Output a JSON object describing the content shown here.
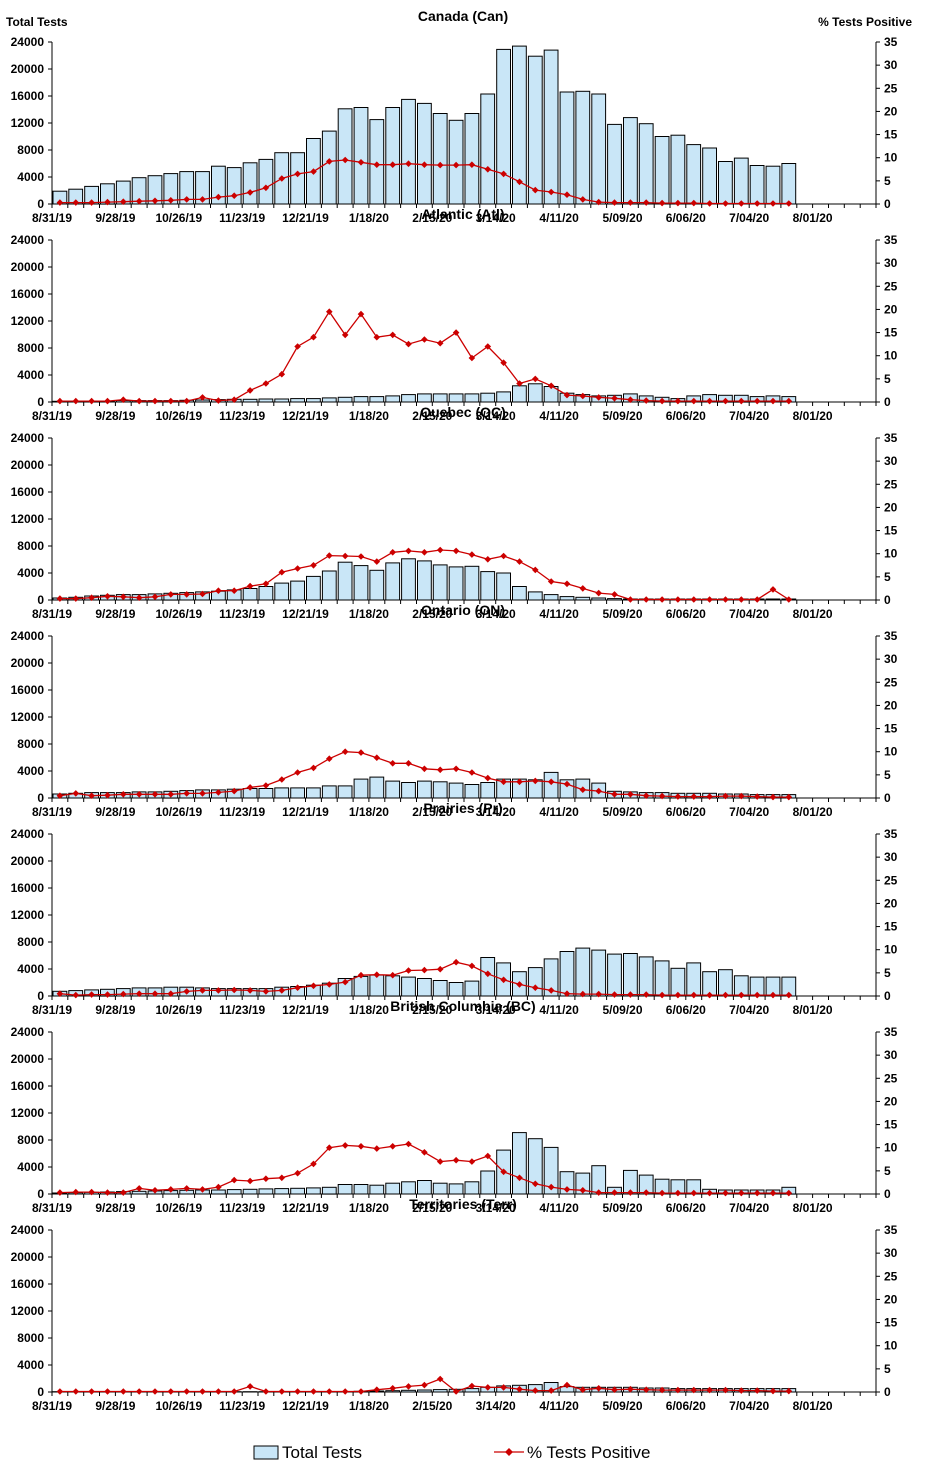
{
  "axis_labels": {
    "left": "Total Tests",
    "right": "% Tests Positive"
  },
  "legend": {
    "bars": "Total Tests",
    "line": "% Tests Positive"
  },
  "colors": {
    "bar_fill": "#c9e6f7",
    "bar_stroke": "#000000",
    "line": "#cc0000"
  },
  "chart_data": [
    {
      "type": "bar",
      "title": "Canada (Can)",
      "xlabels": [
        "8/31/19",
        "9/28/19",
        "10/26/19",
        "11/23/19",
        "12/21/19",
        "1/18/20",
        "2/15/20",
        "3/14/20",
        "4/11/20",
        "5/09/20",
        "6/06/20",
        "7/04/20",
        "8/01/20"
      ],
      "ylim": [
        0,
        24000
      ],
      "y2lim": [
        0,
        35
      ],
      "yticks": [
        0,
        4000,
        8000,
        12000,
        16000,
        20000,
        24000
      ],
      "y2ticks": [
        0,
        5,
        10,
        15,
        20,
        25,
        30,
        35
      ],
      "series": [
        {
          "name": "Total Tests",
          "values": [
            1900,
            2200,
            2600,
            3000,
            3400,
            3900,
            4200,
            4500,
            4800,
            4800,
            5600,
            5400,
            6100,
            6600,
            7600,
            7600,
            9700,
            10800,
            14100,
            14300,
            12500,
            14300,
            15500,
            14900,
            13400,
            12400,
            13400,
            16300,
            22900,
            23400,
            21900,
            22800,
            16600,
            16700,
            16300,
            11800,
            12800,
            11900,
            10000,
            10200,
            8800,
            8300,
            6300,
            6800,
            5700,
            5600,
            6000
          ]
        },
        {
          "name": "% Tests Positive",
          "values": [
            0.3,
            0.3,
            0.3,
            0.4,
            0.5,
            0.6,
            0.7,
            0.8,
            1.0,
            1.0,
            1.5,
            1.8,
            2.5,
            3.5,
            5.5,
            6.5,
            7.0,
            9.2,
            9.5,
            9.0,
            8.5,
            8.5,
            8.7,
            8.5,
            8.4,
            8.4,
            8.5,
            7.5,
            6.5,
            4.8,
            3.0,
            2.6,
            2.0,
            1.0,
            0.4,
            0.3,
            0.3,
            0.3,
            0.2,
            0.2,
            0.2,
            0.1,
            0.1,
            0.1,
            0.1,
            0.1,
            0.1
          ]
        }
      ]
    },
    {
      "type": "bar",
      "title": "Atlantic (Atl)",
      "xlabels": [
        "8/31/19",
        "9/28/19",
        "10/26/19",
        "11/23/19",
        "12/21/19",
        "1/18/20",
        "2/15/20",
        "3/14/20",
        "4/11/20",
        "5/09/20",
        "6/06/20",
        "7/04/20",
        "8/01/20"
      ],
      "ylim": [
        0,
        24000
      ],
      "y2lim": [
        0,
        35
      ],
      "yticks": [
        0,
        4000,
        8000,
        12000,
        16000,
        20000,
        24000
      ],
      "y2ticks": [
        0,
        5,
        10,
        15,
        20,
        25,
        30,
        35
      ],
      "series": [
        {
          "name": "Total Tests",
          "values": [
            100,
            150,
            150,
            150,
            200,
            200,
            200,
            200,
            250,
            300,
            350,
            400,
            400,
            450,
            450,
            500,
            500,
            600,
            700,
            800,
            800,
            900,
            1100,
            1200,
            1200,
            1200,
            1200,
            1300,
            1500,
            2400,
            2700,
            2300,
            1300,
            1100,
            900,
            1000,
            1200,
            900,
            700,
            500,
            900,
            1100,
            1000,
            1000,
            800,
            900,
            800
          ]
        },
        {
          "name": "% Tests Positive",
          "values": [
            0.2,
            0.2,
            0.2,
            0.2,
            0.5,
            0.2,
            0.2,
            0.2,
            0.2,
            1.0,
            0.3,
            0.5,
            2.5,
            4.0,
            6.0,
            12.0,
            14.0,
            19.5,
            14.5,
            19.0,
            14.0,
            14.5,
            12.5,
            13.5,
            12.7,
            15.0,
            9.5,
            12.0,
            8.5,
            4.0,
            5.0,
            3.5,
            1.5,
            1.3,
            1.0,
            0.8,
            0.5,
            0.3,
            0.2,
            0.2,
            0.2,
            0.2,
            0.2,
            0.2,
            0.2,
            0.2,
            0.2
          ]
        }
      ]
    },
    {
      "type": "bar",
      "title": "Quebec (QC)",
      "xlabels": [
        "8/31/19",
        "9/28/19",
        "10/26/19",
        "11/23/19",
        "12/21/19",
        "1/18/20",
        "2/15/20",
        "3/14/20",
        "4/11/20",
        "5/09/20",
        "6/06/20",
        "7/04/20",
        "8/01/20"
      ],
      "ylim": [
        0,
        24000
      ],
      "y2lim": [
        0,
        35
      ],
      "yticks": [
        0,
        4000,
        8000,
        12000,
        16000,
        20000,
        24000
      ],
      "y2ticks": [
        0,
        5,
        10,
        15,
        20,
        25,
        30,
        35
      ],
      "series": [
        {
          "name": "Total Tests",
          "values": [
            300,
            400,
            600,
            700,
            800,
            800,
            900,
            1000,
            1100,
            1200,
            1300,
            1500,
            1700,
            2000,
            2500,
            2800,
            3500,
            4300,
            5600,
            5100,
            4400,
            5500,
            6100,
            5800,
            5200,
            4900,
            5000,
            4200,
            4000,
            2000,
            1200,
            800,
            500,
            400,
            300,
            200,
            150,
            150,
            150,
            150,
            150,
            150,
            150,
            150,
            150,
            150,
            150
          ]
        },
        {
          "name": "% Tests Positive",
          "values": [
            0.3,
            0.3,
            0.5,
            0.8,
            0.7,
            0.5,
            0.7,
            1.2,
            1.2,
            1.3,
            2.0,
            2.0,
            3.0,
            3.5,
            6.0,
            6.8,
            7.5,
            9.6,
            9.5,
            9.4,
            8.3,
            10.3,
            10.6,
            10.3,
            10.8,
            10.6,
            9.8,
            8.8,
            9.5,
            8.3,
            6.5,
            4.0,
            3.5,
            2.5,
            1.5,
            1.2,
            0.1,
            0.1,
            0.1,
            0.1,
            0.1,
            0.1,
            0.1,
            0.1,
            0.1,
            2.3,
            0.1
          ]
        }
      ]
    },
    {
      "type": "bar",
      "title": "Ontario (ON)",
      "xlabels": [
        "8/31/19",
        "9/28/19",
        "10/26/19",
        "11/23/19",
        "12/21/19",
        "1/18/20",
        "2/15/20",
        "3/14/20",
        "4/11/20",
        "5/09/20",
        "6/06/20",
        "7/04/20",
        "8/01/20"
      ],
      "ylim": [
        0,
        24000
      ],
      "y2lim": [
        0,
        35
      ],
      "yticks": [
        0,
        4000,
        8000,
        12000,
        16000,
        20000,
        24000
      ],
      "y2ticks": [
        0,
        5,
        10,
        15,
        20,
        25,
        30,
        35
      ],
      "series": [
        {
          "name": "Total Tests",
          "values": [
            600,
            700,
            800,
            800,
            800,
            900,
            900,
            1000,
            1100,
            1200,
            1200,
            1300,
            1400,
            1400,
            1500,
            1500,
            1500,
            1800,
            1800,
            2800,
            3100,
            2500,
            2300,
            2500,
            2400,
            2200,
            2000,
            2300,
            2800,
            2800,
            2700,
            3800,
            2700,
            2800,
            2200,
            1000,
            900,
            800,
            800,
            700,
            700,
            700,
            600,
            600,
            500,
            500,
            500
          ]
        },
        {
          "name": "% Tests Positive",
          "values": [
            0.5,
            1.0,
            0.5,
            0.6,
            0.8,
            0.8,
            0.8,
            0.8,
            1.0,
            1.0,
            1.2,
            1.5,
            2.3,
            2.7,
            4.0,
            5.5,
            6.5,
            8.5,
            10.0,
            9.8,
            8.7,
            7.5,
            7.5,
            6.3,
            6.1,
            6.3,
            5.5,
            4.3,
            3.5,
            3.5,
            3.7,
            3.5,
            3.0,
            1.8,
            1.5,
            0.8,
            0.8,
            0.5,
            0.4,
            0.3,
            0.3,
            0.3,
            0.4,
            0.4,
            0.3,
            0.2,
            0.2
          ]
        }
      ]
    },
    {
      "type": "bar",
      "title": "Prairies (Pr)",
      "xlabels": [
        "8/31/19",
        "9/28/19",
        "10/26/19",
        "11/23/19",
        "12/21/19",
        "1/18/20",
        "2/15/20",
        "3/14/20",
        "4/11/20",
        "5/09/20",
        "6/06/20",
        "7/04/20",
        "8/01/20"
      ],
      "ylim": [
        0,
        24000
      ],
      "y2lim": [
        0,
        35
      ],
      "yticks": [
        0,
        4000,
        8000,
        12000,
        16000,
        20000,
        24000
      ],
      "y2ticks": [
        0,
        5,
        10,
        15,
        20,
        25,
        30,
        35
      ],
      "series": [
        {
          "name": "Total Tests",
          "values": [
            700,
            800,
            900,
            1000,
            1100,
            1200,
            1200,
            1300,
            1300,
            1200,
            1100,
            1100,
            1100,
            1100,
            1300,
            1400,
            1600,
            1900,
            2600,
            2900,
            3100,
            3000,
            2800,
            2600,
            2300,
            2000,
            2200,
            5700,
            4900,
            3600,
            4200,
            5500,
            6600,
            7100,
            6800,
            6200,
            6300,
            5800,
            5200,
            4100,
            4900,
            3600,
            3900,
            3000,
            2800,
            2800,
            2800
          ]
        },
        {
          "name": "% Tests Positive",
          "values": [
            0.5,
            0.2,
            0.3,
            0.3,
            0.4,
            0.5,
            0.5,
            0.5,
            1.0,
            1.2,
            1.2,
            1.3,
            1.2,
            1.0,
            1.2,
            1.8,
            2.2,
            2.5,
            3.0,
            4.5,
            4.6,
            4.5,
            5.5,
            5.6,
            5.8,
            7.3,
            6.5,
            4.8,
            3.5,
            2.5,
            1.8,
            1.2,
            0.5,
            0.4,
            0.4,
            0.3,
            0.3,
            0.3,
            0.2,
            0.2,
            0.2,
            0.2,
            0.2,
            0.2,
            0.2,
            0.2,
            0.2
          ]
        }
      ]
    },
    {
      "type": "bar",
      "title": "British Columbia (BC)",
      "xlabels": [
        "8/31/19",
        "9/28/19",
        "10/26/19",
        "11/23/19",
        "12/21/19",
        "1/18/20",
        "2/15/20",
        "3/14/20",
        "4/11/20",
        "5/09/20",
        "6/06/20",
        "7/04/20",
        "8/01/20"
      ],
      "ylim": [
        0,
        24000
      ],
      "y2lim": [
        0,
        35
      ],
      "yticks": [
        0,
        4000,
        8000,
        12000,
        16000,
        20000,
        24000
      ],
      "y2ticks": [
        0,
        5,
        10,
        15,
        20,
        25,
        30,
        35
      ],
      "series": [
        {
          "name": "Total Tests",
          "values": [
            150,
            200,
            250,
            300,
            350,
            400,
            450,
            500,
            550,
            600,
            600,
            650,
            700,
            750,
            800,
            850,
            900,
            1000,
            1400,
            1400,
            1300,
            1600,
            1800,
            2000,
            1600,
            1500,
            1800,
            3400,
            6500,
            9100,
            8200,
            6900,
            3300,
            3100,
            4200,
            1000,
            3500,
            2800,
            2200,
            2100,
            2100,
            700,
            600,
            600,
            600,
            600,
            1000
          ]
        },
        {
          "name": "% Tests Positive",
          "values": [
            0.3,
            0.4,
            0.4,
            0.3,
            0.3,
            1.2,
            0.8,
            1.0,
            1.2,
            1.0,
            1.5,
            3.0,
            2.8,
            3.3,
            3.5,
            4.5,
            6.5,
            10.0,
            10.5,
            10.3,
            9.8,
            10.3,
            10.8,
            9.0,
            7.0,
            7.3,
            7.0,
            8.2,
            4.8,
            3.5,
            2.2,
            1.5,
            1.0,
            0.8,
            0.3,
            0.3,
            0.3,
            0.3,
            0.2,
            0.2,
            0.2,
            0.2,
            0.2,
            0.2,
            0.2,
            0.2,
            0.2
          ]
        }
      ]
    },
    {
      "type": "bar",
      "title": "Territories (Terr)",
      "xlabels": [
        "8/31/19",
        "9/28/19",
        "10/26/19",
        "11/23/19",
        "12/21/19",
        "1/18/20",
        "2/15/20",
        "3/14/20",
        "4/11/20",
        "5/09/20",
        "6/06/20",
        "7/04/20",
        "8/01/20"
      ],
      "ylim": [
        0,
        24000
      ],
      "y2lim": [
        0,
        35
      ],
      "yticks": [
        0,
        4000,
        8000,
        12000,
        16000,
        20000,
        24000
      ],
      "y2ticks": [
        0,
        5,
        10,
        15,
        20,
        25,
        30,
        35
      ],
      "series": [
        {
          "name": "Total Tests",
          "values": [
            50,
            50,
            50,
            50,
            50,
            50,
            50,
            50,
            50,
            50,
            50,
            50,
            50,
            50,
            50,
            50,
            50,
            50,
            50,
            100,
            150,
            200,
            250,
            300,
            350,
            400,
            500,
            700,
            900,
            1000,
            1100,
            1400,
            800,
            700,
            700,
            700,
            700,
            600,
            600,
            500,
            500,
            500,
            500,
            500,
            500,
            500,
            500
          ]
        },
        {
          "name": "% Tests Positive",
          "values": [
            0.1,
            0.1,
            0.1,
            0.1,
            0.1,
            0.1,
            0.1,
            0.1,
            0.1,
            0.1,
            0.1,
            0.1,
            1.2,
            0.1,
            0.1,
            0.1,
            0.1,
            0.1,
            0.1,
            0.1,
            0.5,
            0.8,
            1.2,
            1.5,
            2.8,
            0.1,
            1.3,
            1.0,
            1.0,
            0.6,
            0.3,
            0.3,
            1.5,
            0.5,
            0.8,
            0.5,
            0.6,
            0.5,
            0.4,
            0.4,
            0.4,
            0.4,
            0.4,
            0.3,
            0.3,
            0.2,
            0.2
          ]
        }
      ]
    }
  ]
}
